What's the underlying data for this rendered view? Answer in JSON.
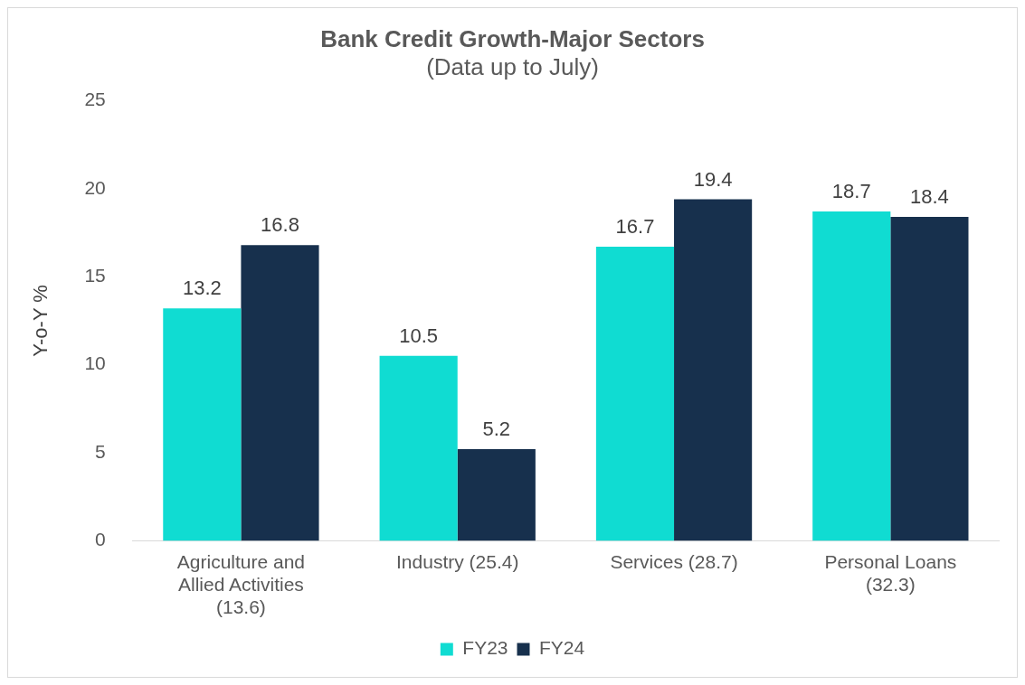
{
  "chart_data": {
    "type": "bar",
    "title": "Bank Credit Growth-Major Sectors",
    "subtitle": "(Data up to July)",
    "ylabel": "Y-o-Y %",
    "categories": [
      "Agriculture and Allied Activities (13.6)",
      "Industry (25.4)",
      "Services (28.7)",
      "Personal Loans (32.3)"
    ],
    "series": [
      {
        "name": "FY23",
        "color": "#10dcd2",
        "values": [
          13.2,
          10.5,
          16.7,
          18.7
        ]
      },
      {
        "name": "FY24",
        "color": "#17304d",
        "values": [
          16.8,
          5.2,
          19.4,
          18.4
        ]
      }
    ],
    "ylim": [
      0,
      25
    ],
    "yticks": [
      0,
      5,
      10,
      15,
      20,
      25
    ],
    "grid": false,
    "legend": "bottom",
    "data_labels": true
  }
}
